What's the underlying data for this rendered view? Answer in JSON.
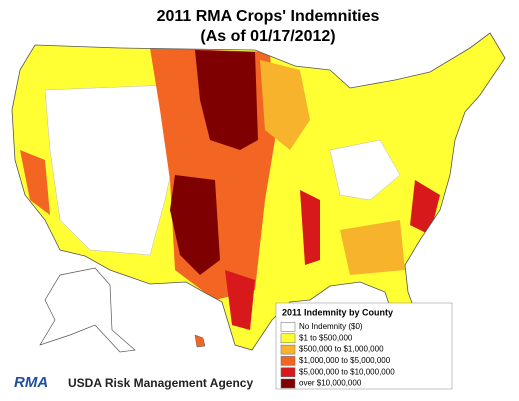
{
  "header": {
    "title_line1": "2011 RMA Crops' Indemnities",
    "title_line2": "(As of 01/17/2012)"
  },
  "legend": {
    "title": "2011 Indemnity by County",
    "items": [
      {
        "label": "No Indemnity ($0)",
        "color": "#ffffff"
      },
      {
        "label": "$1 to $500,000",
        "color": "#ffff33"
      },
      {
        "label": "$500,000 to $1,000,000",
        "color": "#f7b32b"
      },
      {
        "label": "$1,000,000 to $5,000,000",
        "color": "#f26522"
      },
      {
        "label": "$5,000,000 to $10,000,000",
        "color": "#d7191c"
      },
      {
        "label": "over $10,000,000",
        "color": "#7f0000"
      }
    ]
  },
  "footer": {
    "logo": "RMA",
    "agency": "USDA Risk Management Agency"
  }
}
